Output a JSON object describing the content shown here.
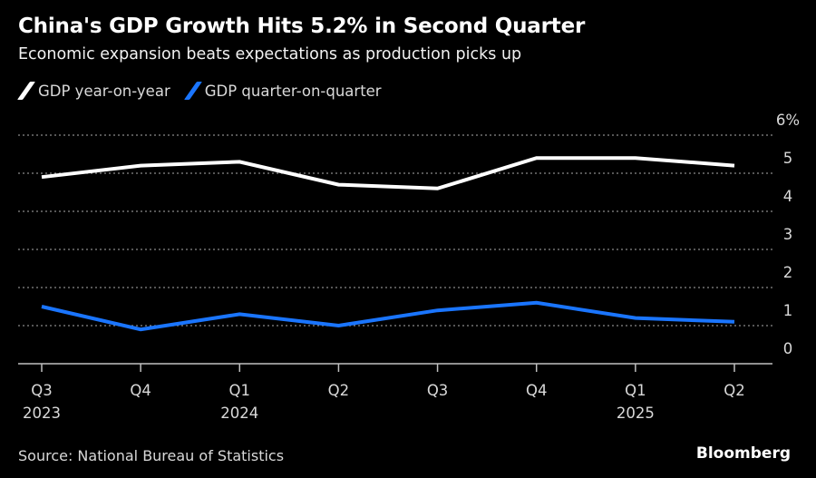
{
  "header": {
    "title": "China's GDP Growth Hits 5.2% in Second Quarter",
    "subtitle": "Economic expansion beats expectations as production picks up"
  },
  "footer": {
    "source": "Source: National Bureau of Statistics",
    "brand": "Bloomberg"
  },
  "chart_data": {
    "type": "line",
    "title": "China's GDP Growth Hits 5.2% in Second Quarter",
    "subtitle": "Economic expansion beats expectations as production picks up",
    "x_labels": [
      {
        "q": "Q3",
        "year": "2023"
      },
      {
        "q": "Q4",
        "year": ""
      },
      {
        "q": "Q1",
        "year": "2024"
      },
      {
        "q": "Q2",
        "year": ""
      },
      {
        "q": "Q3",
        "year": ""
      },
      {
        "q": "Q4",
        "year": ""
      },
      {
        "q": "Q1",
        "year": "2025"
      },
      {
        "q": "Q2",
        "year": ""
      }
    ],
    "categories": [
      "Q3 2023",
      "Q4 2023",
      "Q1 2024",
      "Q2 2024",
      "Q3 2024",
      "Q4 2024",
      "Q1 2025",
      "Q2 2025"
    ],
    "series": [
      {
        "name": "GDP year-on-year",
        "color": "#ffffff",
        "values": [
          4.9,
          5.2,
          5.3,
          4.7,
          4.6,
          5.4,
          5.4,
          5.2
        ]
      },
      {
        "name": "GDP quarter-on-quarter",
        "color": "#1a75ff",
        "values": [
          1.5,
          0.9,
          1.3,
          1.0,
          1.4,
          1.6,
          1.2,
          1.1
        ]
      }
    ],
    "y_ticks": [
      "0",
      "1",
      "2",
      "3",
      "4",
      "5",
      "6%"
    ],
    "ylim": [
      0,
      6
    ],
    "xlabel": "",
    "ylabel": "",
    "grid": true,
    "legend_position": "top-left",
    "y_axis_side": "right"
  }
}
